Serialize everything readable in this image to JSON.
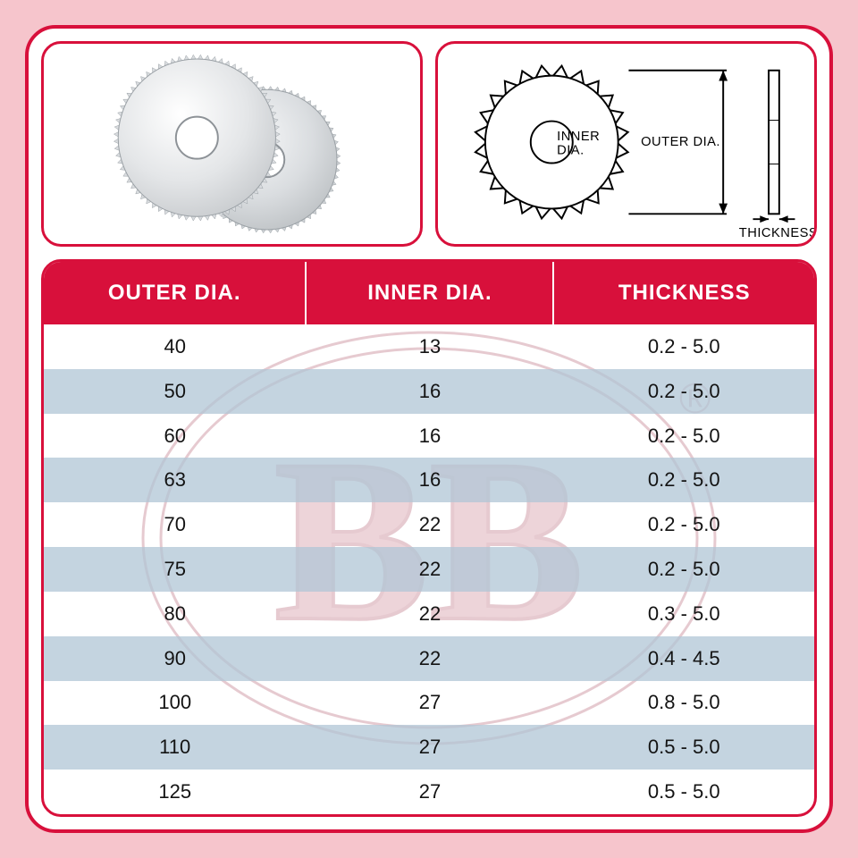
{
  "colors": {
    "page_bg": "#f6c5cc",
    "card_bg": "#ffffff",
    "brand_red": "#d8103b",
    "row_alt": "#b9c9d7",
    "text": "#131313",
    "header_text": "#ffffff"
  },
  "diagram": {
    "inner_label_line1": "INNER",
    "inner_label_line2": "DIA.",
    "outer_label": "OUTER DIA.",
    "thickness_label": "THICKNESS"
  },
  "table": {
    "columns": [
      "OUTER DIA.",
      "INNER DIA.",
      "THICKNESS"
    ],
    "rows": [
      [
        "40",
        "13",
        "0.2 - 5.0"
      ],
      [
        "50",
        "16",
        "0.2 - 5.0"
      ],
      [
        "60",
        "16",
        "0.2 - 5.0"
      ],
      [
        "63",
        "16",
        "0.2 - 5.0"
      ],
      [
        "70",
        "22",
        "0.2 - 5.0"
      ],
      [
        "75",
        "22",
        "0.2 - 5.0"
      ],
      [
        "80",
        "22",
        "0.3 - 5.0"
      ],
      [
        "90",
        "22",
        "0.4 - 4.5"
      ],
      [
        "100",
        "27",
        "0.8 - 5.0"
      ],
      [
        "110",
        "27",
        "0.5 - 5.0"
      ],
      [
        "125",
        "27",
        "0.5 - 5.0"
      ]
    ],
    "header_fontsize": 24,
    "cell_fontsize": 22
  },
  "watermark": {
    "text": "BB",
    "registered": "®",
    "stroke": "#a8455b",
    "fill_hint": "#c2677b"
  }
}
